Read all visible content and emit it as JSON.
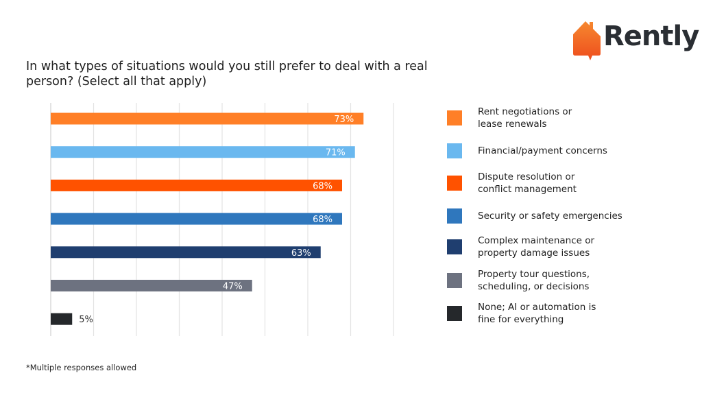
{
  "brand": {
    "name": "Rently",
    "logo_icon": "house-speech-bubble-icon",
    "color": "#f26a21"
  },
  "title": "In what types of situations would you still prefer to deal with a real person? (Select all that apply)",
  "footnote": "*Multiple responses allowed",
  "chart_data": {
    "type": "bar",
    "orientation": "horizontal",
    "title": "In what types of situations would you still prefer to deal with a real person? (Select all that apply)",
    "xlabel": "",
    "ylabel": "",
    "xlim": [
      0,
      80
    ],
    "grid": true,
    "grid_step": 10,
    "legend_position": "right",
    "categories": [
      "Rent negotiations or\nlease renewals",
      "Financial/payment concerns",
      "Dispute resolution or\nconflict management",
      "Security or safety emergencies",
      "Complex maintenance or\nproperty damage issues",
      "Property tour questions,\nscheduling, or decisions",
      "None; AI or automation is\nfine for everything"
    ],
    "values": [
      73,
      71,
      68,
      68,
      63,
      47,
      5
    ],
    "labels": [
      "73%",
      "71%",
      "68%",
      "68%",
      "63%",
      "47%",
      "5%"
    ],
    "colors": [
      "#ff7f27",
      "#6ab8ef",
      "#ff5200",
      "#2f77bd",
      "#1f3e6f",
      "#6d7280",
      "#25282b"
    ],
    "label_inside": [
      true,
      true,
      true,
      true,
      true,
      true,
      false
    ]
  }
}
